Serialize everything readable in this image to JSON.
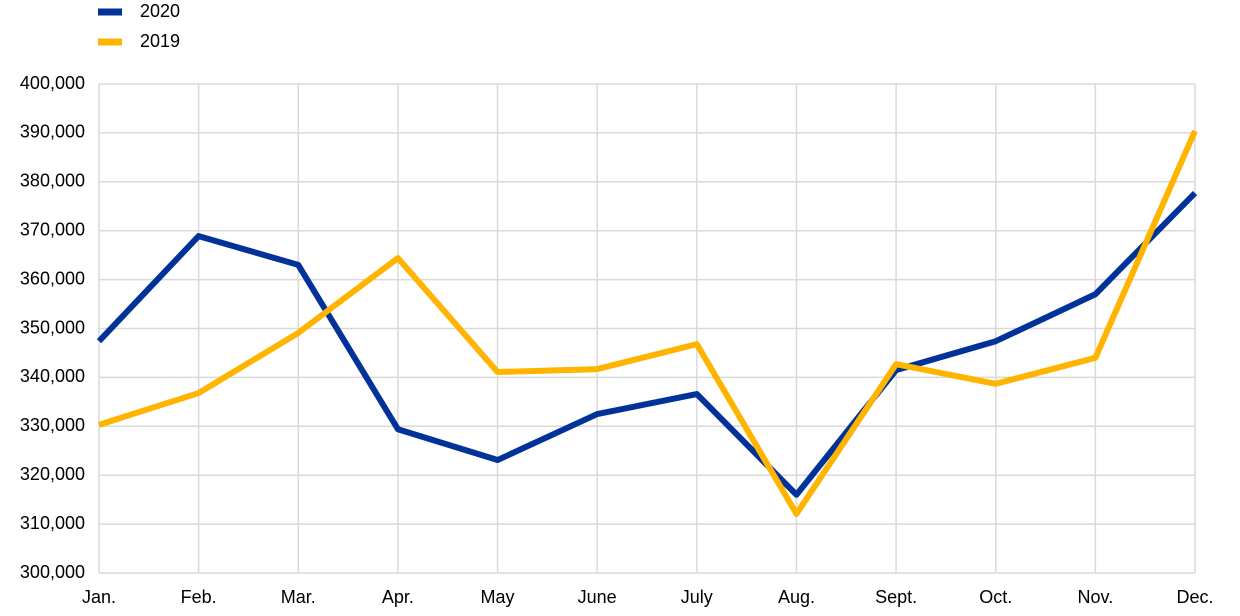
{
  "chart_data": {
    "type": "line",
    "categories": [
      "Jan.",
      "Feb.",
      "Mar.",
      "Apr.",
      "May",
      "June",
      "July",
      "Aug.",
      "Sept.",
      "Oct.",
      "Nov.",
      "Dec."
    ],
    "series": [
      {
        "name": "2020",
        "color": "#003299",
        "values": [
          347400,
          368900,
          363000,
          329400,
          323100,
          332500,
          336600,
          316000,
          341500,
          347400,
          357000,
          377700
        ]
      },
      {
        "name": "2019",
        "color": "#ffb400",
        "values": [
          330300,
          336800,
          349100,
          364400,
          341100,
          341700,
          346800,
          312100,
          342700,
          338700,
          344000,
          390400
        ]
      }
    ],
    "ylim": [
      300000,
      400000
    ],
    "yticks": [
      {
        "value": 300000,
        "label": "300,000"
      },
      {
        "value": 310000,
        "label": "310,000"
      },
      {
        "value": 320000,
        "label": "320,000"
      },
      {
        "value": 330000,
        "label": "330,000"
      },
      {
        "value": 340000,
        "label": "340,000"
      },
      {
        "value": 350000,
        "label": "350,000"
      },
      {
        "value": 360000,
        "label": "360,000"
      },
      {
        "value": 370000,
        "label": "370,000"
      },
      {
        "value": 380000,
        "label": "380,000"
      },
      {
        "value": 390000,
        "label": "390,000"
      },
      {
        "value": 400000,
        "label": "400,000"
      }
    ],
    "grid": true,
    "legend": "top-left"
  }
}
